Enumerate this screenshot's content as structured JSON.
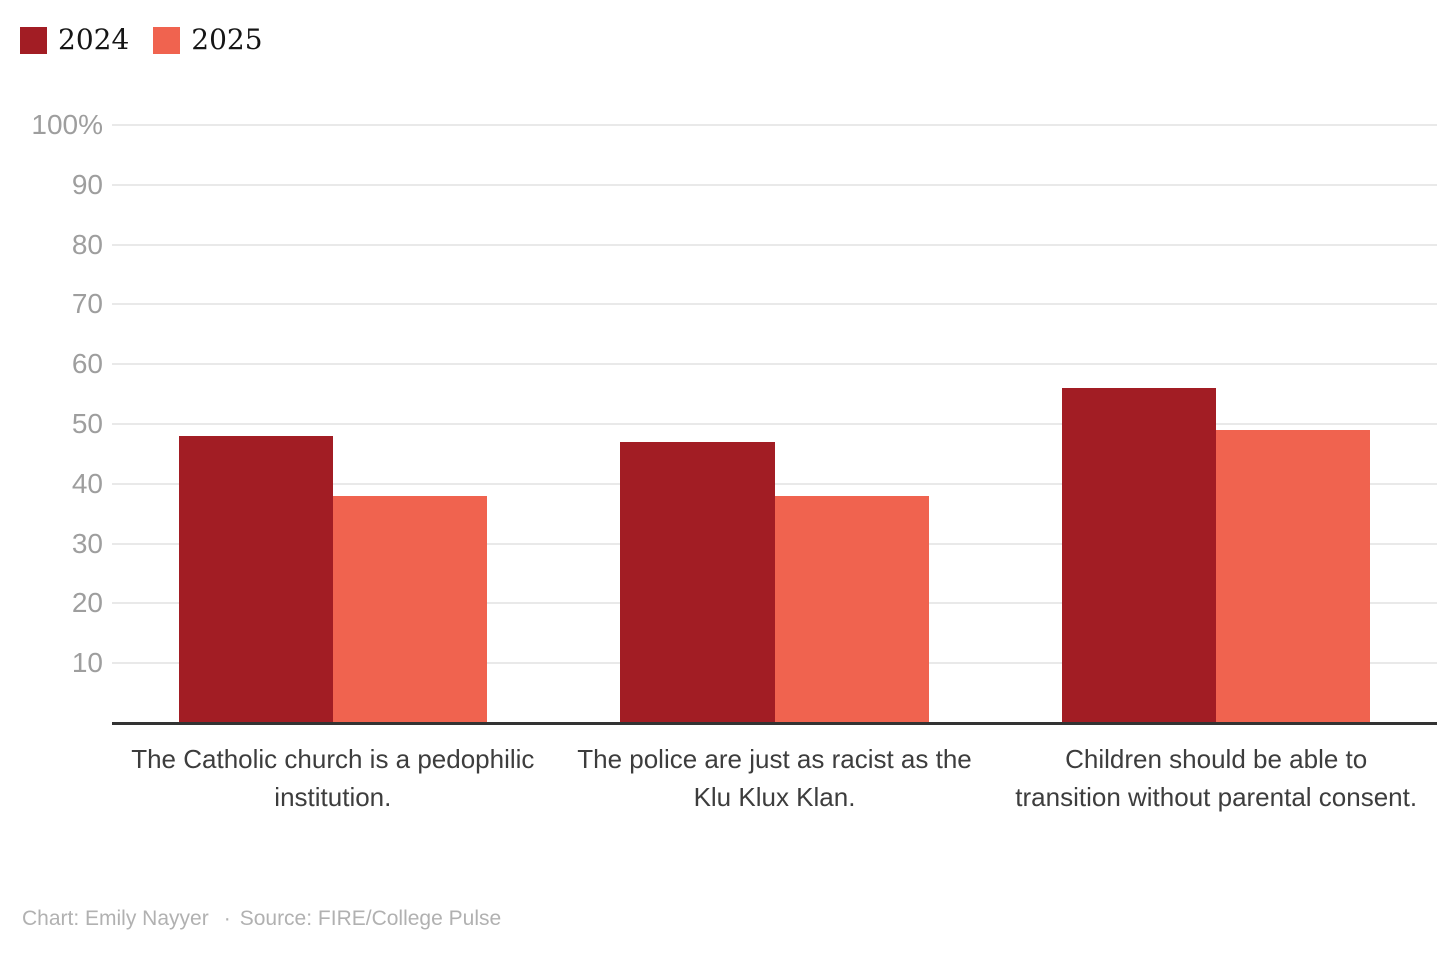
{
  "legend": {
    "items": [
      {
        "label": "2024",
        "color": "#a21d24"
      },
      {
        "label": "2025",
        "color": "#f0634f"
      }
    ]
  },
  "chart_data": {
    "type": "bar",
    "title": "",
    "xlabel": "",
    "ylabel": "",
    "categories": [
      "The Catholic church is a pedophilic institution.",
      "The police are just as racist as the Klu Klux Klan.",
      "Children should be able to transition without parental consent."
    ],
    "series": [
      {
        "name": "2024",
        "color": "#a21d24",
        "values": [
          48,
          47,
          56
        ]
      },
      {
        "name": "2025",
        "color": "#f0634f",
        "values": [
          38,
          38,
          49
        ]
      }
    ],
    "ylim": [
      0,
      100
    ],
    "yticks": [
      10,
      20,
      30,
      40,
      50,
      60,
      70,
      80,
      90,
      100
    ],
    "ytick_labels": [
      "10",
      "20",
      "30",
      "40",
      "50",
      "60",
      "70",
      "80",
      "90",
      "100%"
    ],
    "grid": "horizontal",
    "legend_position": "top-left",
    "colors": {
      "gridline": "#e9e9e9",
      "axis_line": "#333333",
      "tick_text": "#9e9e9e",
      "category_text": "#3d3d3d"
    }
  },
  "footer": {
    "credit": "Chart: Emily Nayyer",
    "separator": "·",
    "source": "Source: FIRE/College Pulse"
  }
}
